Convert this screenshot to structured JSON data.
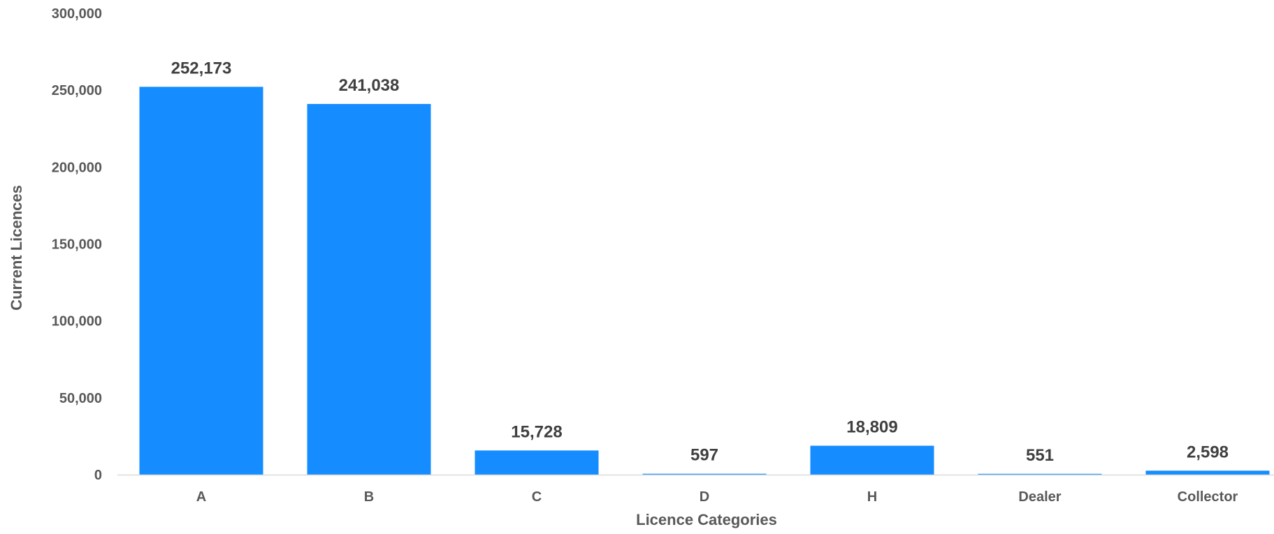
{
  "chart_data": {
    "type": "bar",
    "title": "",
    "xlabel": "Licence Categories",
    "ylabel": "Current Licences",
    "categories": [
      "A",
      "B",
      "C",
      "D",
      "H",
      "Dealer",
      "Collector"
    ],
    "values": [
      252173,
      241038,
      15728,
      597,
      18809,
      551,
      2598
    ],
    "data_labels": [
      "252,173",
      "241,038",
      "15,728",
      "597",
      "18,809",
      "551",
      "2,598"
    ],
    "ylim": [
      0,
      300000
    ],
    "yticks": [
      0,
      50000,
      100000,
      150000,
      200000,
      250000,
      300000
    ],
    "ytick_labels": [
      "0",
      "50,000",
      "100,000",
      "150,000",
      "200,000",
      "250,000",
      "300,000"
    ],
    "grid": false,
    "legend": "none",
    "colors": {
      "bar": "#158CFF",
      "axis": "#D9D9D9",
      "text": "#595959",
      "data_label": "#404040"
    }
  }
}
